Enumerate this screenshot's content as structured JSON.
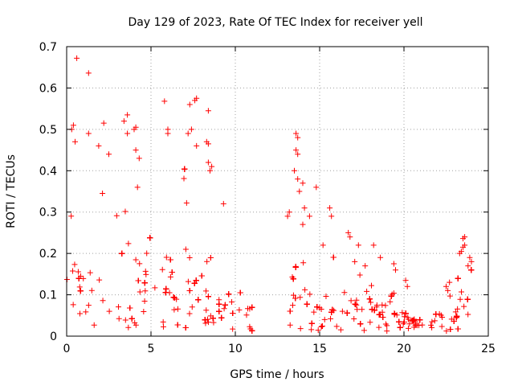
{
  "chart_data": {
    "type": "scatter",
    "title": "Day 129 of 2023, Rate Of TEC Index for receiver yell",
    "xlabel": "GPS time / hours",
    "ylabel": "ROTI / TECUs",
    "xlim": [
      0,
      25
    ],
    "ylim": [
      0,
      0.7
    ],
    "xticks": [
      0,
      5,
      10,
      15,
      20,
      25
    ],
    "yticks": [
      0,
      0.1,
      0.2,
      0.3,
      0.4,
      0.5,
      0.6,
      0.7
    ],
    "xtick_labels": [
      "0",
      "5",
      "10",
      "15",
      "20",
      "25"
    ],
    "ytick_labels": [
      "0",
      "0.1",
      "0.2",
      "0.3",
      "0.4",
      "0.5",
      "0.6",
      "0.7"
    ],
    "grid": true,
    "marker": "+",
    "color": "#ff0000",
    "density_profile": {
      "step_hours": 0.5,
      "hours": [
        0,
        0.5,
        1,
        1.5,
        2,
        2.5,
        3,
        3.5,
        4,
        4.5,
        5,
        5.5,
        6,
        6.5,
        7,
        7.5,
        8,
        8.5,
        9,
        9.5,
        10,
        10.5,
        11,
        13.2,
        13.5,
        14,
        14.5,
        15,
        15.5,
        16,
        16.5,
        17,
        17.5,
        18,
        18.5,
        19,
        19.5,
        20,
        20.5,
        21,
        21.5,
        22,
        22.5,
        23,
        23.5,
        24
      ],
      "upper_envelope": [
        0.28,
        0.42,
        0.37,
        0.38,
        0.4,
        0.35,
        0.44,
        0.48,
        0.42,
        0.3,
        0.25,
        0.35,
        0.34,
        0.4,
        0.45,
        0.47,
        0.42,
        0.3,
        0.15,
        0.12,
        0.12,
        0.14,
        0.1,
        0.3,
        0.4,
        0.33,
        0.2,
        0.2,
        0.22,
        0.21,
        0.2,
        0.19,
        0.16,
        0.16,
        0.14,
        0.12,
        0.12,
        0.08,
        0.06,
        0.06,
        0.06,
        0.08,
        0.1,
        0.12,
        0.2,
        0.17
      ],
      "median_level": [
        0.08,
        0.12,
        0.1,
        0.11,
        0.12,
        0.11,
        0.14,
        0.15,
        0.13,
        0.1,
        0.08,
        0.1,
        0.1,
        0.11,
        0.12,
        0.12,
        0.1,
        0.07,
        0.05,
        0.04,
        0.04,
        0.04,
        0.04,
        0.08,
        0.1,
        0.09,
        0.07,
        0.06,
        0.06,
        0.06,
        0.06,
        0.05,
        0.05,
        0.05,
        0.04,
        0.04,
        0.04,
        0.03,
        0.02,
        0.02,
        0.02,
        0.03,
        0.03,
        0.04,
        0.06,
        0.05
      ]
    },
    "points": [
      [
        0.6,
        0.672
      ],
      [
        1.3,
        0.636
      ],
      [
        5.8,
        0.568
      ],
      [
        7.6,
        0.57
      ],
      [
        7.7,
        0.575
      ],
      [
        7.3,
        0.56
      ],
      [
        8.4,
        0.545
      ],
      [
        3.6,
        0.535
      ],
      [
        3.4,
        0.52
      ],
      [
        2.2,
        0.515
      ],
      [
        0.4,
        0.51
      ],
      [
        0.3,
        0.5
      ],
      [
        4.1,
        0.505
      ],
      [
        4.0,
        0.5
      ],
      [
        6.0,
        0.5
      ],
      [
        1.3,
        0.49
      ],
      [
        3.6,
        0.49
      ],
      [
        6.0,
        0.49
      ],
      [
        7.2,
        0.49
      ],
      [
        7.4,
        0.5
      ],
      [
        0.5,
        0.47
      ],
      [
        1.9,
        0.46
      ],
      [
        2.5,
        0.44
      ],
      [
        4.1,
        0.45
      ],
      [
        7.7,
        0.46
      ],
      [
        8.3,
        0.47
      ],
      [
        8.4,
        0.465
      ],
      [
        13.6,
        0.49
      ],
      [
        13.7,
        0.48
      ],
      [
        13.6,
        0.45
      ],
      [
        13.7,
        0.44
      ],
      [
        13.5,
        0.4
      ],
      [
        13.7,
        0.38
      ],
      [
        14.0,
        0.37
      ],
      [
        14.8,
        0.36
      ],
      [
        13.8,
        0.35
      ],
      [
        14.1,
        0.31
      ],
      [
        13.2,
        0.3
      ],
      [
        13.1,
        0.29
      ],
      [
        14.4,
        0.29
      ],
      [
        15.6,
        0.31
      ],
      [
        15.7,
        0.29
      ],
      [
        14.0,
        0.27
      ],
      [
        16.7,
        0.25
      ],
      [
        16.8,
        0.24
      ],
      [
        15.2,
        0.22
      ],
      [
        17.3,
        0.22
      ],
      [
        18.2,
        0.22
      ],
      [
        23.5,
        0.215
      ],
      [
        23.6,
        0.22
      ],
      [
        23.5,
        0.236
      ],
      [
        23.6,
        0.24
      ],
      [
        23.3,
        0.2
      ],
      [
        23.4,
        0.205
      ],
      [
        23.8,
        0.17
      ],
      [
        22.7,
        0.13
      ],
      [
        22.5,
        0.12
      ],
      [
        22.6,
        0.11
      ],
      [
        23.9,
        0.19
      ],
      [
        24.0,
        0.18
      ],
      [
        19.4,
        0.175
      ],
      [
        19.5,
        0.16
      ],
      [
        18.6,
        0.19
      ],
      [
        17.7,
        0.17
      ],
      [
        20.1,
        0.135
      ],
      [
        20.2,
        0.12
      ],
      [
        9.3,
        0.32
      ],
      [
        8.4,
        0.42
      ],
      [
        8.5,
        0.4
      ],
      [
        8.6,
        0.41
      ],
      [
        4.3,
        0.43
      ],
      [
        4.2,
        0.36
      ]
    ]
  }
}
